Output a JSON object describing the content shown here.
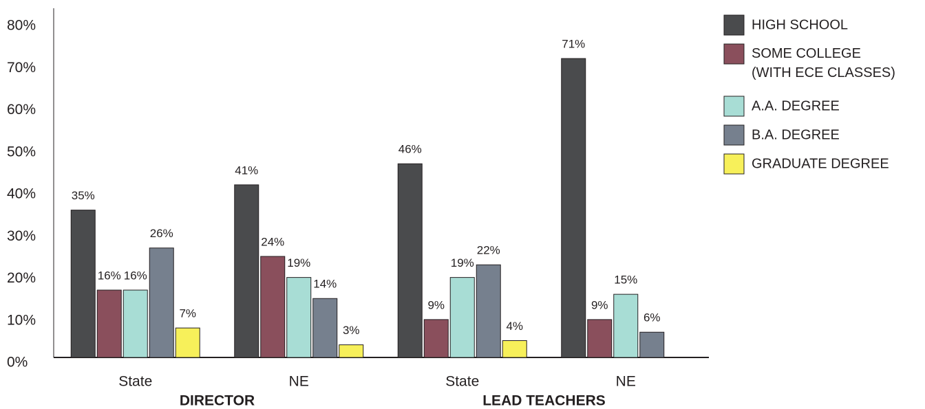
{
  "chart_data": {
    "type": "bar",
    "categories": [
      "State",
      "NE",
      "State",
      "NE"
    ],
    "group_labels": [
      "DIRECTOR",
      "LEAD TEACHERS"
    ],
    "series": [
      {
        "name": "HIGH SCHOOL",
        "color": "#4a4b4d",
        "values": [
          35,
          41,
          46,
          71
        ],
        "value_labels": [
          "35%",
          "41%",
          "46%",
          "71%"
        ]
      },
      {
        "name": "SOME COLLEGE\n(WITH ECE CLASSES)",
        "color": "#8a4f5c",
        "values": [
          16,
          24,
          9,
          9
        ],
        "value_labels": [
          "16%",
          "24%",
          "9%",
          "9%"
        ]
      },
      {
        "name": "A.A. DEGREE",
        "color": "#a8ddd5",
        "values": [
          16,
          19,
          19,
          15
        ],
        "value_labels": [
          "16%",
          "19%",
          "19%",
          "15%"
        ]
      },
      {
        "name": "B.A. DEGREE",
        "color": "#76808e",
        "values": [
          26,
          14,
          22,
          6
        ],
        "value_labels": [
          "26%",
          "14%",
          "22%",
          "6%"
        ]
      },
      {
        "name": "GRADUATE DEGREE",
        "color": "#f7f05a",
        "values": [
          7,
          3,
          4,
          null
        ],
        "value_labels": [
          "7%",
          "3%",
          "4%",
          null
        ]
      }
    ],
    "ylim": [
      0,
      80
    ],
    "yticks": [
      {
        "value": 0,
        "label": "0%"
      },
      {
        "value": 10,
        "label": "10%"
      },
      {
        "value": 20,
        "label": "20%"
      },
      {
        "value": 30,
        "label": "30%"
      },
      {
        "value": 40,
        "label": "40%"
      },
      {
        "value": 50,
        "label": "50%"
      },
      {
        "value": 60,
        "label": "60%"
      },
      {
        "value": 70,
        "label": "70%"
      },
      {
        "value": 80,
        "label": "80%"
      }
    ],
    "grid": false,
    "legend": "right"
  }
}
